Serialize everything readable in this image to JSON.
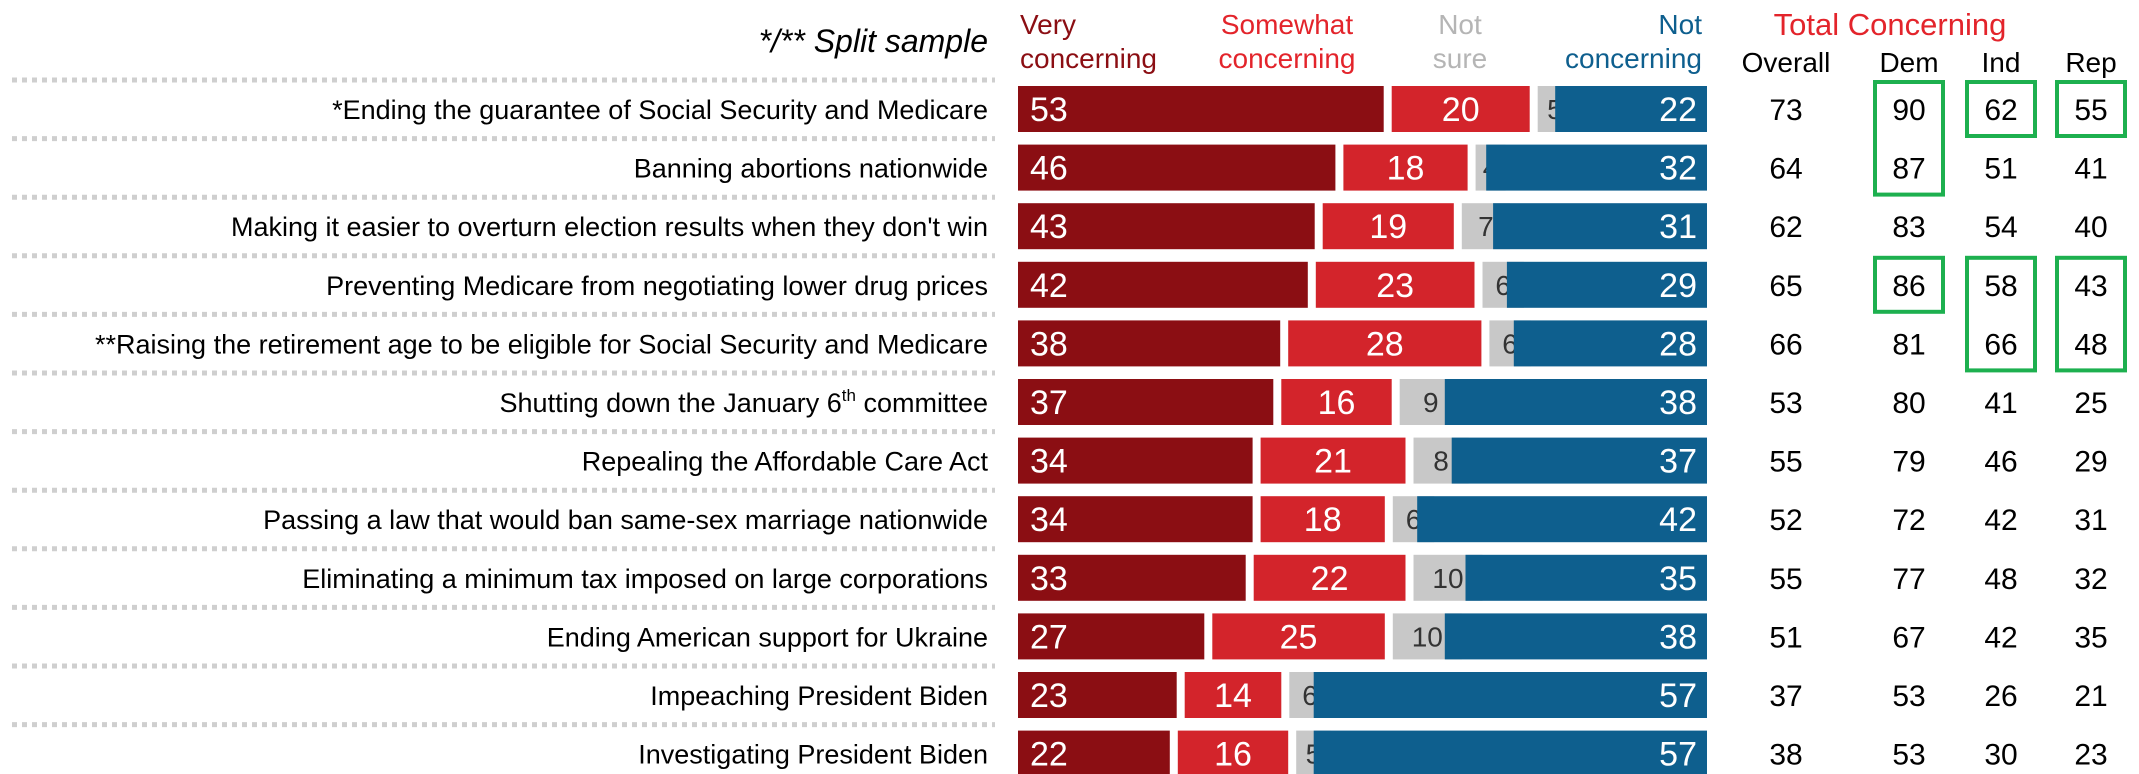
{
  "colors": {
    "very": "#8B0E13",
    "somewhat": "#D3242B",
    "notsure": "#C8C8C8",
    "not": "#0E5F8E",
    "header_red": "#E3242B",
    "header_gray": "#B5B5B5",
    "highlight": "#1DB04F",
    "dots": "#CFCFCF"
  },
  "header": {
    "split_note": "*/** Split sample",
    "very": [
      "Very",
      "concerning"
    ],
    "somewhat": [
      "Somewhat",
      "concerning"
    ],
    "notsure": [
      "Not",
      "sure"
    ],
    "not": [
      "Not",
      "concerning"
    ],
    "total": "Total Concerning",
    "cols": [
      "Overall",
      "Dem",
      "Ind",
      "Rep"
    ]
  },
  "chart_data": {
    "type": "bar",
    "stacked": true,
    "categories": [
      "*Ending the guarantee of Social Security and Medicare",
      "Banning abortions nationwide",
      "Making it easier to overturn election results when they don't win",
      "Preventing Medicare from negotiating lower drug prices",
      "**Raising the retirement age to be eligible for Social Security and Medicare",
      "Shutting down the January 6th committee",
      "Repealing the Affordable Care Act",
      "Passing a law that would ban same-sex marriage nationwide",
      "Eliminating a minimum tax imposed on large corporations",
      "Ending American support for Ukraine",
      "Impeaching President Biden",
      "Investigating President Biden"
    ],
    "series": [
      {
        "name": "Very concerning",
        "values": [
          53,
          46,
          43,
          42,
          38,
          37,
          34,
          34,
          33,
          27,
          23,
          22
        ]
      },
      {
        "name": "Somewhat concerning",
        "values": [
          20,
          18,
          19,
          23,
          28,
          16,
          21,
          18,
          22,
          25,
          14,
          16
        ]
      },
      {
        "name": "Not sure",
        "values": [
          5,
          4,
          7,
          6,
          6,
          9,
          8,
          6,
          10,
          10,
          6,
          5
        ]
      },
      {
        "name": "Not concerning",
        "values": [
          22,
          32,
          31,
          29,
          28,
          38,
          37,
          42,
          35,
          38,
          57,
          57
        ]
      }
    ],
    "total_concerning": {
      "Overall": [
        73,
        64,
        62,
        65,
        66,
        53,
        55,
        52,
        55,
        51,
        37,
        38
      ],
      "Dem": [
        90,
        87,
        83,
        86,
        81,
        80,
        79,
        72,
        77,
        67,
        53,
        53
      ],
      "Ind": [
        62,
        51,
        54,
        58,
        66,
        41,
        46,
        42,
        48,
        42,
        26,
        30
      ],
      "Rep": [
        55,
        41,
        40,
        43,
        48,
        25,
        29,
        31,
        32,
        35,
        21,
        23
      ]
    },
    "highlighted_boxes": [
      {
        "column": "Dem",
        "rows": [
          0,
          1
        ]
      },
      {
        "column": "Ind",
        "rows": [
          0
        ]
      },
      {
        "column": "Rep",
        "rows": [
          0
        ]
      },
      {
        "column": "Dem",
        "rows": [
          3
        ]
      },
      {
        "column": "Ind",
        "rows": [
          3,
          4
        ]
      },
      {
        "column": "Rep",
        "rows": [
          3,
          4
        ]
      }
    ]
  }
}
